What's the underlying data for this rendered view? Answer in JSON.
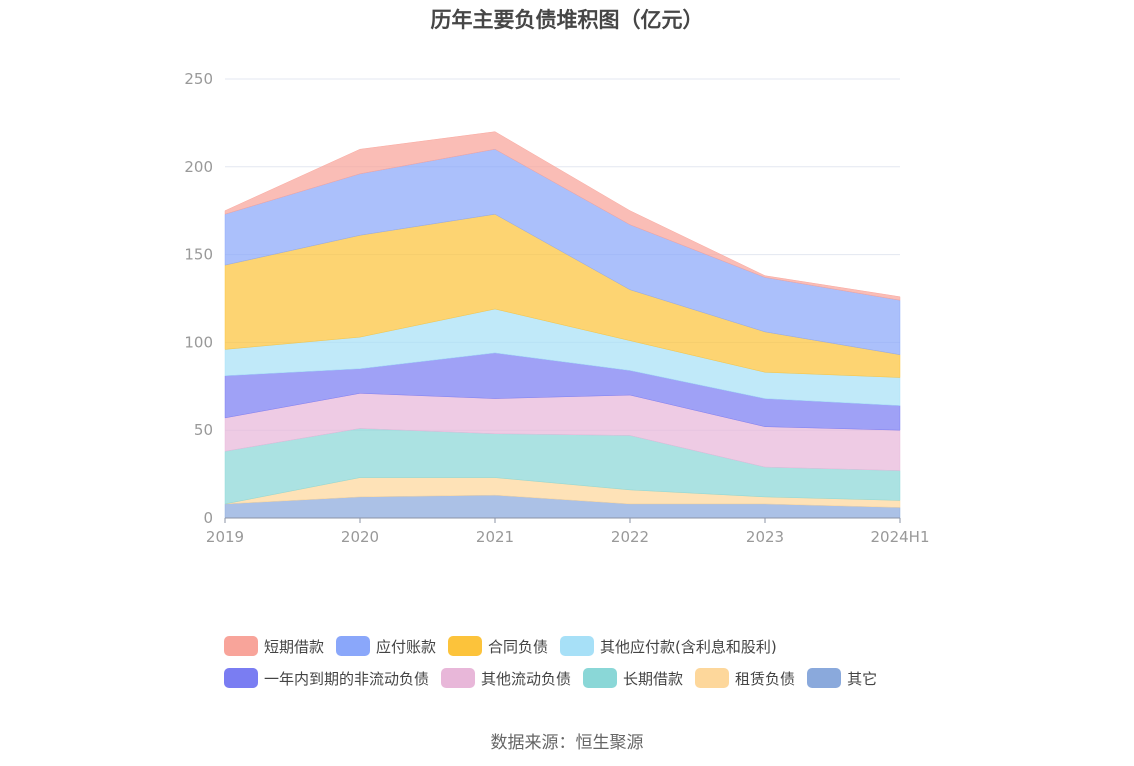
{
  "chart_data": {
    "type": "area",
    "stacked": true,
    "title": "历年主要负债堆积图（亿元）",
    "categories": [
      "2019",
      "2020",
      "2021",
      "2022",
      "2023",
      "2024H1"
    ],
    "ylim": [
      0,
      250
    ],
    "yticks": [
      0,
      50,
      100,
      150,
      200,
      250
    ],
    "grid": true,
    "legend_position": "bottom",
    "series": [
      {
        "name": "其它",
        "color": "#8aa9dc",
        "values": [
          8,
          12,
          13,
          8,
          8,
          6
        ]
      },
      {
        "name": "租赁负债",
        "color": "#fdd79b",
        "values": [
          0,
          11,
          10,
          8,
          4,
          4
        ]
      },
      {
        "name": "长期借款",
        "color": "#8ad7d7",
        "values": [
          30,
          28,
          25,
          31,
          17,
          17
        ]
      },
      {
        "name": "其他流动负债",
        "color": "#e8b7d9",
        "values": [
          19,
          20,
          20,
          23,
          23,
          23
        ]
      },
      {
        "name": "一年内到期的非流动负债",
        "color": "#7a7df2",
        "values": [
          24,
          14,
          26,
          14,
          16,
          14
        ]
      },
      {
        "name": "其他应付款(含利息和股利)",
        "color": "#a7e0f7",
        "values": [
          15,
          18,
          25,
          17,
          15,
          16
        ]
      },
      {
        "name": "合同负债",
        "color": "#fcc33b",
        "values": [
          48,
          58,
          54,
          29,
          23,
          13
        ]
      },
      {
        "name": "应付账款",
        "color": "#8aa7fa",
        "values": [
          29,
          35,
          37,
          37,
          31,
          31
        ]
      },
      {
        "name": "短期借款",
        "color": "#f8a49a",
        "values": [
          2,
          14,
          10,
          8,
          1,
          2
        ]
      }
    ]
  },
  "legend": {
    "rows": [
      [
        {
          "label": "短期借款",
          "color": "#f8a49a"
        },
        {
          "label": "应付账款",
          "color": "#8aa7fa"
        },
        {
          "label": "合同负债",
          "color": "#fcc33b"
        },
        {
          "label": "其他应付款(含利息和股利)",
          "color": "#a7e0f7"
        }
      ],
      [
        {
          "label": "一年内到期的非流动负债",
          "color": "#7a7df2"
        },
        {
          "label": "其他流动负债",
          "color": "#e8b7d9"
        },
        {
          "label": "长期借款",
          "color": "#8ad7d7"
        },
        {
          "label": "租赁负债",
          "color": "#fdd79b"
        },
        {
          "label": "其它",
          "color": "#8aa9dc"
        }
      ]
    ]
  },
  "source": "数据来源：恒生聚源"
}
